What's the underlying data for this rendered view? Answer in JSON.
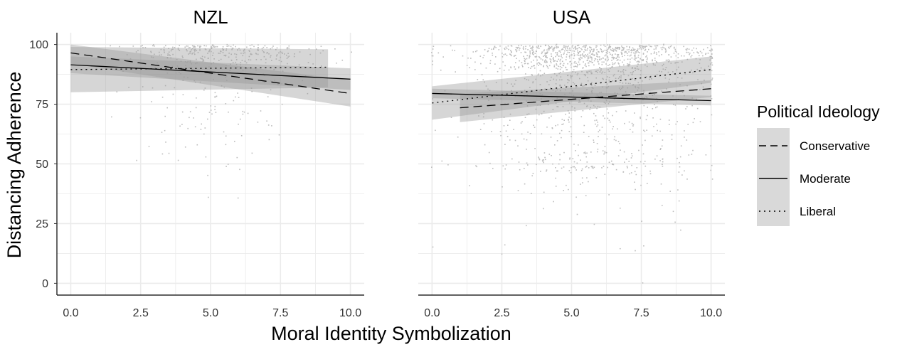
{
  "chart_data": {
    "type": "line",
    "xlabel": "Moral Identity Symbolization",
    "ylabel": "Distancing Adherence",
    "xlim": [
      0,
      10
    ],
    "ylim": [
      0,
      100
    ],
    "x_ticks": [
      "0.0",
      "2.5",
      "5.0",
      "7.5",
      "10.0"
    ],
    "y_ticks": [
      "0",
      "25",
      "50",
      "75",
      "100"
    ],
    "grid": true,
    "legend": {
      "title": "Political Ideology",
      "placement": "right",
      "entries": [
        {
          "label": "Conservative",
          "linetype": "dashed"
        },
        {
          "label": "Moderate",
          "linetype": "solid"
        },
        {
          "label": "Liberal",
          "linetype": "dotted"
        }
      ]
    },
    "panels": [
      {
        "title": "NZL",
        "series": [
          {
            "name": "Conservative",
            "x": [
              0,
              10
            ],
            "y": [
              96.5,
              79.5
            ],
            "ci_lower": [
              92,
              74
            ],
            "ci_upper": [
              100,
              85
            ]
          },
          {
            "name": "Moderate",
            "x": [
              0,
              10
            ],
            "y": [
              91.5,
              85.5
            ],
            "ci_lower": [
              88,
              81
            ],
            "ci_upper": [
              95,
              90
            ]
          },
          {
            "name": "Liberal",
            "x": [
              0,
              9.2
            ],
            "y": [
              89.5,
              90.5
            ],
            "ci_lower": [
              80,
              82
            ],
            "ci_upper": [
              99,
              98
            ]
          }
        ]
      },
      {
        "title": "USA",
        "series": [
          {
            "name": "Conservative",
            "x": [
              1,
              10
            ],
            "y": [
              73.5,
              81.5
            ],
            "ci_lower": [
              67.5,
              78
            ],
            "ci_upper": [
              79.5,
              85
            ]
          },
          {
            "name": "Moderate",
            "x": [
              0,
              10
            ],
            "y": [
              79.5,
              76.5
            ],
            "ci_lower": [
              77.5,
              74.5
            ],
            "ci_upper": [
              81.5,
              78.5
            ]
          },
          {
            "name": "Liberal",
            "x": [
              0,
              10
            ],
            "y": [
              75.5,
              89.5
            ],
            "ci_lower": [
              68.5,
              84
            ],
            "ci_upper": [
              82.5,
              95
            ]
          }
        ]
      }
    ]
  },
  "colors": {
    "panel_bg": "#ffffff",
    "grid": "#ebebeb",
    "axis": "#000000",
    "ribbon": "#999999",
    "line": "#000000",
    "points": "#bdbdbd",
    "legend_key_bg": "#d9d9d9"
  }
}
